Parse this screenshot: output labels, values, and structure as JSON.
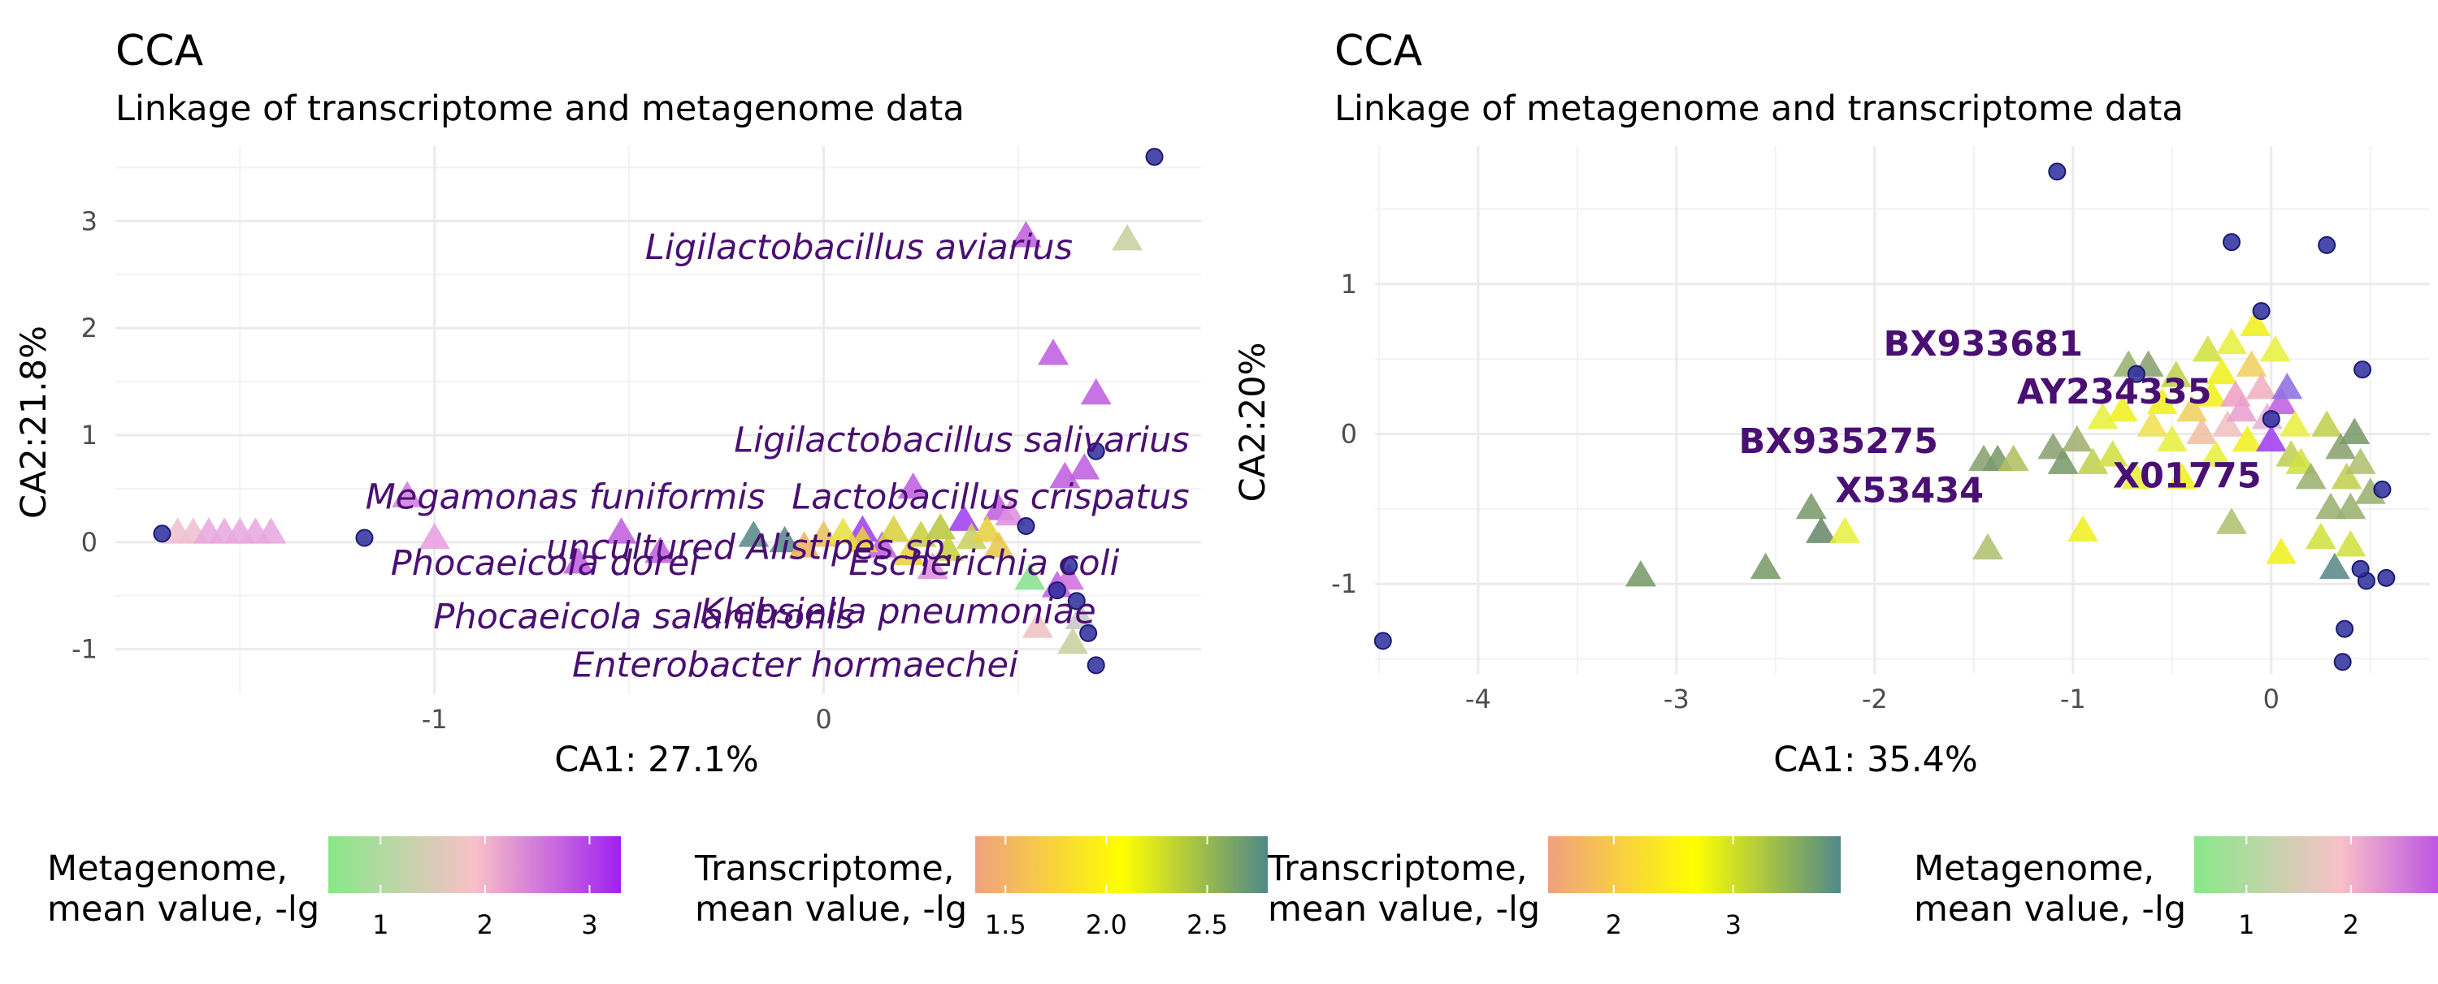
{
  "chart_data": [
    {
      "type": "scatter",
      "title": "CCA",
      "subtitle": "Linkage of transcriptome and metagenome data",
      "xlabel": "CA1: 27.1%",
      "ylabel": "CA2:21.8%",
      "xlim": [
        -1.82,
        0.97
      ],
      "ylim": [
        -1.42,
        3.7
      ],
      "xticks": [
        -1,
        0
      ],
      "yticks": [
        -1,
        0,
        1,
        2,
        3
      ],
      "grid": true,
      "colors": {
        "circle": "#2b2b9e",
        "label": "#4a0f73"
      },
      "circles": [
        {
          "x": 0.85,
          "y": 3.6
        },
        {
          "x": -1.7,
          "y": 0.08
        },
        {
          "x": -1.18,
          "y": 0.04
        },
        {
          "x": 0.7,
          "y": 0.85
        },
        {
          "x": 0.52,
          "y": 0.15
        },
        {
          "x": 0.63,
          "y": -0.22
        },
        {
          "x": 0.65,
          "y": -0.55
        },
        {
          "x": 0.68,
          "y": -0.85
        },
        {
          "x": 0.7,
          "y": -1.15
        },
        {
          "x": 0.6,
          "y": -0.45
        }
      ],
      "triangles": [
        {
          "x": 0.78,
          "y": 2.82,
          "color": "#c8d0a0"
        },
        {
          "x": 0.52,
          "y": 2.85,
          "color": "#c060e0"
        },
        {
          "x": 0.59,
          "y": 1.75,
          "color": "#c060e0"
        },
        {
          "x": 0.7,
          "y": 1.38,
          "color": "#c060e0"
        },
        {
          "x": 0.67,
          "y": 0.68,
          "color": "#c060e0"
        },
        {
          "x": 0.62,
          "y": 0.6,
          "color": "#c060e0"
        },
        {
          "x": 0.45,
          "y": 0.3,
          "color": "#c060e0"
        },
        {
          "x": 0.36,
          "y": 0.2,
          "color": "#a040f0"
        },
        {
          "x": 0.23,
          "y": 0.5,
          "color": "#c060e0"
        },
        {
          "x": 0.48,
          "y": 0.25,
          "color": "#e090e0"
        },
        {
          "x": -1.0,
          "y": 0.03,
          "color": "#e8a0e0"
        },
        {
          "x": -1.07,
          "y": 0.42,
          "color": "#d080e0"
        },
        {
          "x": -0.63,
          "y": -0.2,
          "color": "#c060e0"
        },
        {
          "x": -0.52,
          "y": 0.08,
          "color": "#c060e0"
        },
        {
          "x": -0.42,
          "y": -0.1,
          "color": "#c060e0"
        },
        {
          "x": 0.28,
          "y": -0.25,
          "color": "#e090e0"
        },
        {
          "x": 0.15,
          "y": -0.05,
          "color": "#c060e0"
        },
        {
          "x": 0.1,
          "y": 0.1,
          "color": "#a040f0"
        },
        {
          "x": 0.6,
          "y": -0.42,
          "color": "#c060e0"
        },
        {
          "x": 0.63,
          "y": -0.35,
          "color": "#d070e0"
        },
        {
          "x": 0.53,
          "y": -0.35,
          "color": "#88e090"
        },
        {
          "x": 0.55,
          "y": -0.8,
          "color": "#f0c0c0"
        },
        {
          "x": 0.64,
          "y": -0.95,
          "color": "#c8d0a0"
        },
        {
          "x": 0.66,
          "y": -0.72,
          "color": "#c8c8c8"
        },
        {
          "x": -1.66,
          "y": 0.08,
          "color": "#f0c0d0"
        },
        {
          "x": -1.62,
          "y": 0.08,
          "color": "#f0c0d0"
        },
        {
          "x": -1.58,
          "y": 0.08,
          "color": "#e8a8e0"
        },
        {
          "x": -1.54,
          "y": 0.08,
          "color": "#e8a8e0"
        },
        {
          "x": -1.5,
          "y": 0.08,
          "color": "#e8a8e0"
        },
        {
          "x": -1.46,
          "y": 0.08,
          "color": "#e8a8e0"
        },
        {
          "x": -1.42,
          "y": 0.08,
          "color": "#e8a8e0"
        },
        {
          "x": -0.18,
          "y": 0.05,
          "color": "#5a8a8a"
        },
        {
          "x": -0.1,
          "y": 0.0,
          "color": "#5a8a8a"
        },
        {
          "x": 0.0,
          "y": 0.05,
          "color": "#e8c060"
        },
        {
          "x": 0.05,
          "y": 0.08,
          "color": "#e8e040"
        },
        {
          "x": 0.1,
          "y": 0.0,
          "color": "#e8d040"
        },
        {
          "x": 0.18,
          "y": 0.1,
          "color": "#d8d040"
        },
        {
          "x": 0.25,
          "y": 0.05,
          "color": "#c8d040"
        },
        {
          "x": 0.3,
          "y": 0.12,
          "color": "#b8c840"
        },
        {
          "x": 0.38,
          "y": 0.03,
          "color": "#c8d060"
        },
        {
          "x": 0.42,
          "y": 0.1,
          "color": "#e8d040"
        },
        {
          "x": 0.45,
          "y": -0.05,
          "color": "#e8c850"
        },
        {
          "x": 0.22,
          "y": -0.12,
          "color": "#e8d040"
        },
        {
          "x": -0.05,
          "y": -0.05,
          "color": "#f0b060"
        },
        {
          "x": 0.32,
          "y": -0.08,
          "color": "#c8d040"
        }
      ],
      "labels": [
        {
          "text": "Ligilactobacillus aviarius",
          "x": 0.64,
          "y": 2.75
        },
        {
          "text": "Ligilactobacillus salivarius",
          "x": 0.94,
          "y": 0.95
        },
        {
          "text": "Megamonas funiformis",
          "x": -0.15,
          "y": 0.42
        },
        {
          "text": "Lactobacillus crispatus",
          "x": 0.94,
          "y": 0.42
        },
        {
          "text": "uncultured Alistipes sp.",
          "x": 0.34,
          "y": -0.05
        },
        {
          "text": "Phocaeicola dorei",
          "x": -0.32,
          "y": -0.2
        },
        {
          "text": "Escherichia coli",
          "x": 0.76,
          "y": -0.2
        },
        {
          "text": "Klebsiella pneumoniae",
          "x": 0.7,
          "y": -0.65
        },
        {
          "text": "Phocaeicola salanitronis",
          "x": 0.08,
          "y": -0.7
        },
        {
          "text": "Enterobacter hormaechei",
          "x": 0.5,
          "y": -1.15
        }
      ]
    },
    {
      "type": "scatter",
      "title": "CCA",
      "subtitle": "Linkage of metagenome and transcriptome data",
      "xlabel": "CA1: 35.4%",
      "ylabel": "CA2:20%",
      "xlim": [
        -4.52,
        0.8
      ],
      "ylim": [
        -1.6,
        1.92
      ],
      "xticks": [
        -4,
        -3,
        -2,
        -1,
        0
      ],
      "yticks": [
        -1,
        0,
        1
      ],
      "grid": true,
      "colors": {
        "circle": "#2b2b9e",
        "label": "#4a0f73"
      },
      "circles": [
        {
          "x": -4.48,
          "y": -1.38
        },
        {
          "x": -1.08,
          "y": 1.75
        },
        {
          "x": -0.2,
          "y": 1.28
        },
        {
          "x": 0.28,
          "y": 1.26
        },
        {
          "x": -0.68,
          "y": 0.4
        },
        {
          "x": -0.05,
          "y": 0.82
        },
        {
          "x": 0.46,
          "y": 0.43
        },
        {
          "x": 0.56,
          "y": -0.37
        },
        {
          "x": 0.48,
          "y": -0.98
        },
        {
          "x": 0.58,
          "y": -0.96
        },
        {
          "x": 0.37,
          "y": -1.3
        },
        {
          "x": 0.36,
          "y": -1.52
        },
        {
          "x": 0.0,
          "y": 0.1
        },
        {
          "x": 0.45,
          "y": -0.9
        }
      ],
      "triangles": [
        {
          "x": -3.18,
          "y": -0.95,
          "color": "#7a9a6a"
        },
        {
          "x": -2.55,
          "y": -0.9,
          "color": "#7a9a6a"
        },
        {
          "x": -2.32,
          "y": -0.5,
          "color": "#7a9a6a"
        },
        {
          "x": -2.27,
          "y": -0.66,
          "color": "#6a8a6a"
        },
        {
          "x": -2.15,
          "y": -0.66,
          "color": "#e8f040"
        },
        {
          "x": -1.43,
          "y": -0.77,
          "color": "#b0c070"
        },
        {
          "x": -1.45,
          "y": -0.18,
          "color": "#8aa070"
        },
        {
          "x": -1.38,
          "y": -0.18,
          "color": "#7a9a6a"
        },
        {
          "x": -1.3,
          "y": -0.18,
          "color": "#b0c060"
        },
        {
          "x": -1.1,
          "y": -0.1,
          "color": "#8aa070"
        },
        {
          "x": -1.05,
          "y": -0.2,
          "color": "#7a9a6a"
        },
        {
          "x": -0.98,
          "y": -0.05,
          "color": "#a0b070"
        },
        {
          "x": -0.95,
          "y": -0.65,
          "color": "#f0f020"
        },
        {
          "x": -0.9,
          "y": -0.2,
          "color": "#c0d050"
        },
        {
          "x": -0.85,
          "y": 0.1,
          "color": "#e8f040"
        },
        {
          "x": -0.8,
          "y": -0.15,
          "color": "#d0e040"
        },
        {
          "x": -0.75,
          "y": 0.15,
          "color": "#f0f020"
        },
        {
          "x": -0.72,
          "y": 0.45,
          "color": "#9ab070"
        },
        {
          "x": -0.68,
          "y": -0.3,
          "color": "#e8f040"
        },
        {
          "x": -0.62,
          "y": 0.45,
          "color": "#8aa070"
        },
        {
          "x": -0.6,
          "y": 0.05,
          "color": "#f0e050"
        },
        {
          "x": -0.55,
          "y": 0.2,
          "color": "#f0f020"
        },
        {
          "x": -0.5,
          "y": -0.05,
          "color": "#e8f040"
        },
        {
          "x": -0.48,
          "y": 0.38,
          "color": "#c0d050"
        },
        {
          "x": -0.45,
          "y": -0.3,
          "color": "#f0f020"
        },
        {
          "x": -0.4,
          "y": 0.15,
          "color": "#f0d060"
        },
        {
          "x": -0.35,
          "y": 0.0,
          "color": "#f0c0a0"
        },
        {
          "x": -0.32,
          "y": 0.55,
          "color": "#d0e040"
        },
        {
          "x": -0.3,
          "y": 0.25,
          "color": "#f0f020"
        },
        {
          "x": -0.28,
          "y": -0.15,
          "color": "#e8f040"
        },
        {
          "x": -0.25,
          "y": 0.4,
          "color": "#f0f020"
        },
        {
          "x": -0.22,
          "y": 0.05,
          "color": "#f0c0c0"
        },
        {
          "x": -0.2,
          "y": 0.6,
          "color": "#e8f040"
        },
        {
          "x": -0.18,
          "y": 0.25,
          "color": "#f0a0c0"
        },
        {
          "x": -0.15,
          "y": 0.15,
          "color": "#e8a0d0"
        },
        {
          "x": -0.12,
          "y": -0.05,
          "color": "#f0f020"
        },
        {
          "x": -0.1,
          "y": 0.45,
          "color": "#f0d060"
        },
        {
          "x": -0.08,
          "y": 0.72,
          "color": "#f0f020"
        },
        {
          "x": -0.05,
          "y": 0.3,
          "color": "#f0b0c0"
        },
        {
          "x": -0.02,
          "y": 0.1,
          "color": "#e8b0d8"
        },
        {
          "x": 0.0,
          "y": -0.05,
          "color": "#a040f0"
        },
        {
          "x": 0.02,
          "y": 0.55,
          "color": "#e8f040"
        },
        {
          "x": 0.05,
          "y": 0.2,
          "color": "#c060e0"
        },
        {
          "x": 0.05,
          "y": -0.8,
          "color": "#f0f020"
        },
        {
          "x": 0.08,
          "y": 0.3,
          "color": "#9070e0"
        },
        {
          "x": 0.1,
          "y": -0.15,
          "color": "#c0d050"
        },
        {
          "x": 0.12,
          "y": 0.05,
          "color": "#e8f040"
        },
        {
          "x": -0.2,
          "y": -0.6,
          "color": "#b0c070"
        },
        {
          "x": 0.15,
          "y": -0.2,
          "color": "#d0e040"
        },
        {
          "x": 0.2,
          "y": -0.3,
          "color": "#9ab070"
        },
        {
          "x": 0.25,
          "y": -0.7,
          "color": "#d0e040"
        },
        {
          "x": 0.28,
          "y": 0.05,
          "color": "#c0d050"
        },
        {
          "x": 0.3,
          "y": -0.5,
          "color": "#9ab070"
        },
        {
          "x": 0.32,
          "y": -0.9,
          "color": "#5a8a8a"
        },
        {
          "x": 0.35,
          "y": -0.1,
          "color": "#8aa070"
        },
        {
          "x": 0.38,
          "y": -0.3,
          "color": "#c0d050"
        },
        {
          "x": 0.4,
          "y": -0.5,
          "color": "#9ab070"
        },
        {
          "x": 0.42,
          "y": 0.0,
          "color": "#7a9a6a"
        },
        {
          "x": 0.45,
          "y": -0.2,
          "color": "#b0c070"
        },
        {
          "x": 0.5,
          "y": -0.4,
          "color": "#9ab070"
        },
        {
          "x": 0.4,
          "y": -0.75,
          "color": "#d0e040"
        }
      ],
      "labels": [
        {
          "text": "BX933681",
          "x": -0.95,
          "y": 0.6
        },
        {
          "text": "AY234335",
          "x": -0.3,
          "y": 0.28
        },
        {
          "text": "BX935275",
          "x": -1.68,
          "y": -0.05
        },
        {
          "text": "X01775",
          "x": -0.05,
          "y": -0.28
        },
        {
          "text": "X53434",
          "x": -1.45,
          "y": -0.38
        }
      ]
    }
  ],
  "legends": [
    {
      "title_line1": "Metagenome,",
      "title_line2": "mean value, -lg",
      "colors": [
        "#88e888",
        "#f8c0c8",
        "#a020f0"
      ],
      "min": 0.5,
      "max": 3.3,
      "ticks": [
        "1",
        "2",
        "3"
      ],
      "tick_values": [
        1,
        2,
        3
      ]
    },
    {
      "title_line1": "Transcriptome,",
      "title_line2": "mean value, -lg",
      "colors": [
        "#f0a080",
        "#ffff00",
        "#508888"
      ],
      "min": 1.35,
      "max": 2.8,
      "ticks": [
        "1.5",
        "2.0",
        "2.5"
      ],
      "tick_values": [
        1.5,
        2.0,
        2.5
      ]
    },
    {
      "title_line1": "Transcriptome,",
      "title_line2": "mean value, -lg",
      "colors": [
        "#f0a080",
        "#ffff00",
        "#508888"
      ],
      "min": 1.45,
      "max": 3.9,
      "ticks": [
        "2",
        "3"
      ],
      "tick_values": [
        2,
        3
      ]
    },
    {
      "title_line1": "Metagenome,",
      "title_line2": "mean value, -lg",
      "colors": [
        "#88e888",
        "#f8c0c8",
        "#a020f0"
      ],
      "min": 0.5,
      "max": 3.3,
      "ticks": [
        "1",
        "2"
      ],
      "tick_values": [
        1,
        2
      ]
    }
  ]
}
